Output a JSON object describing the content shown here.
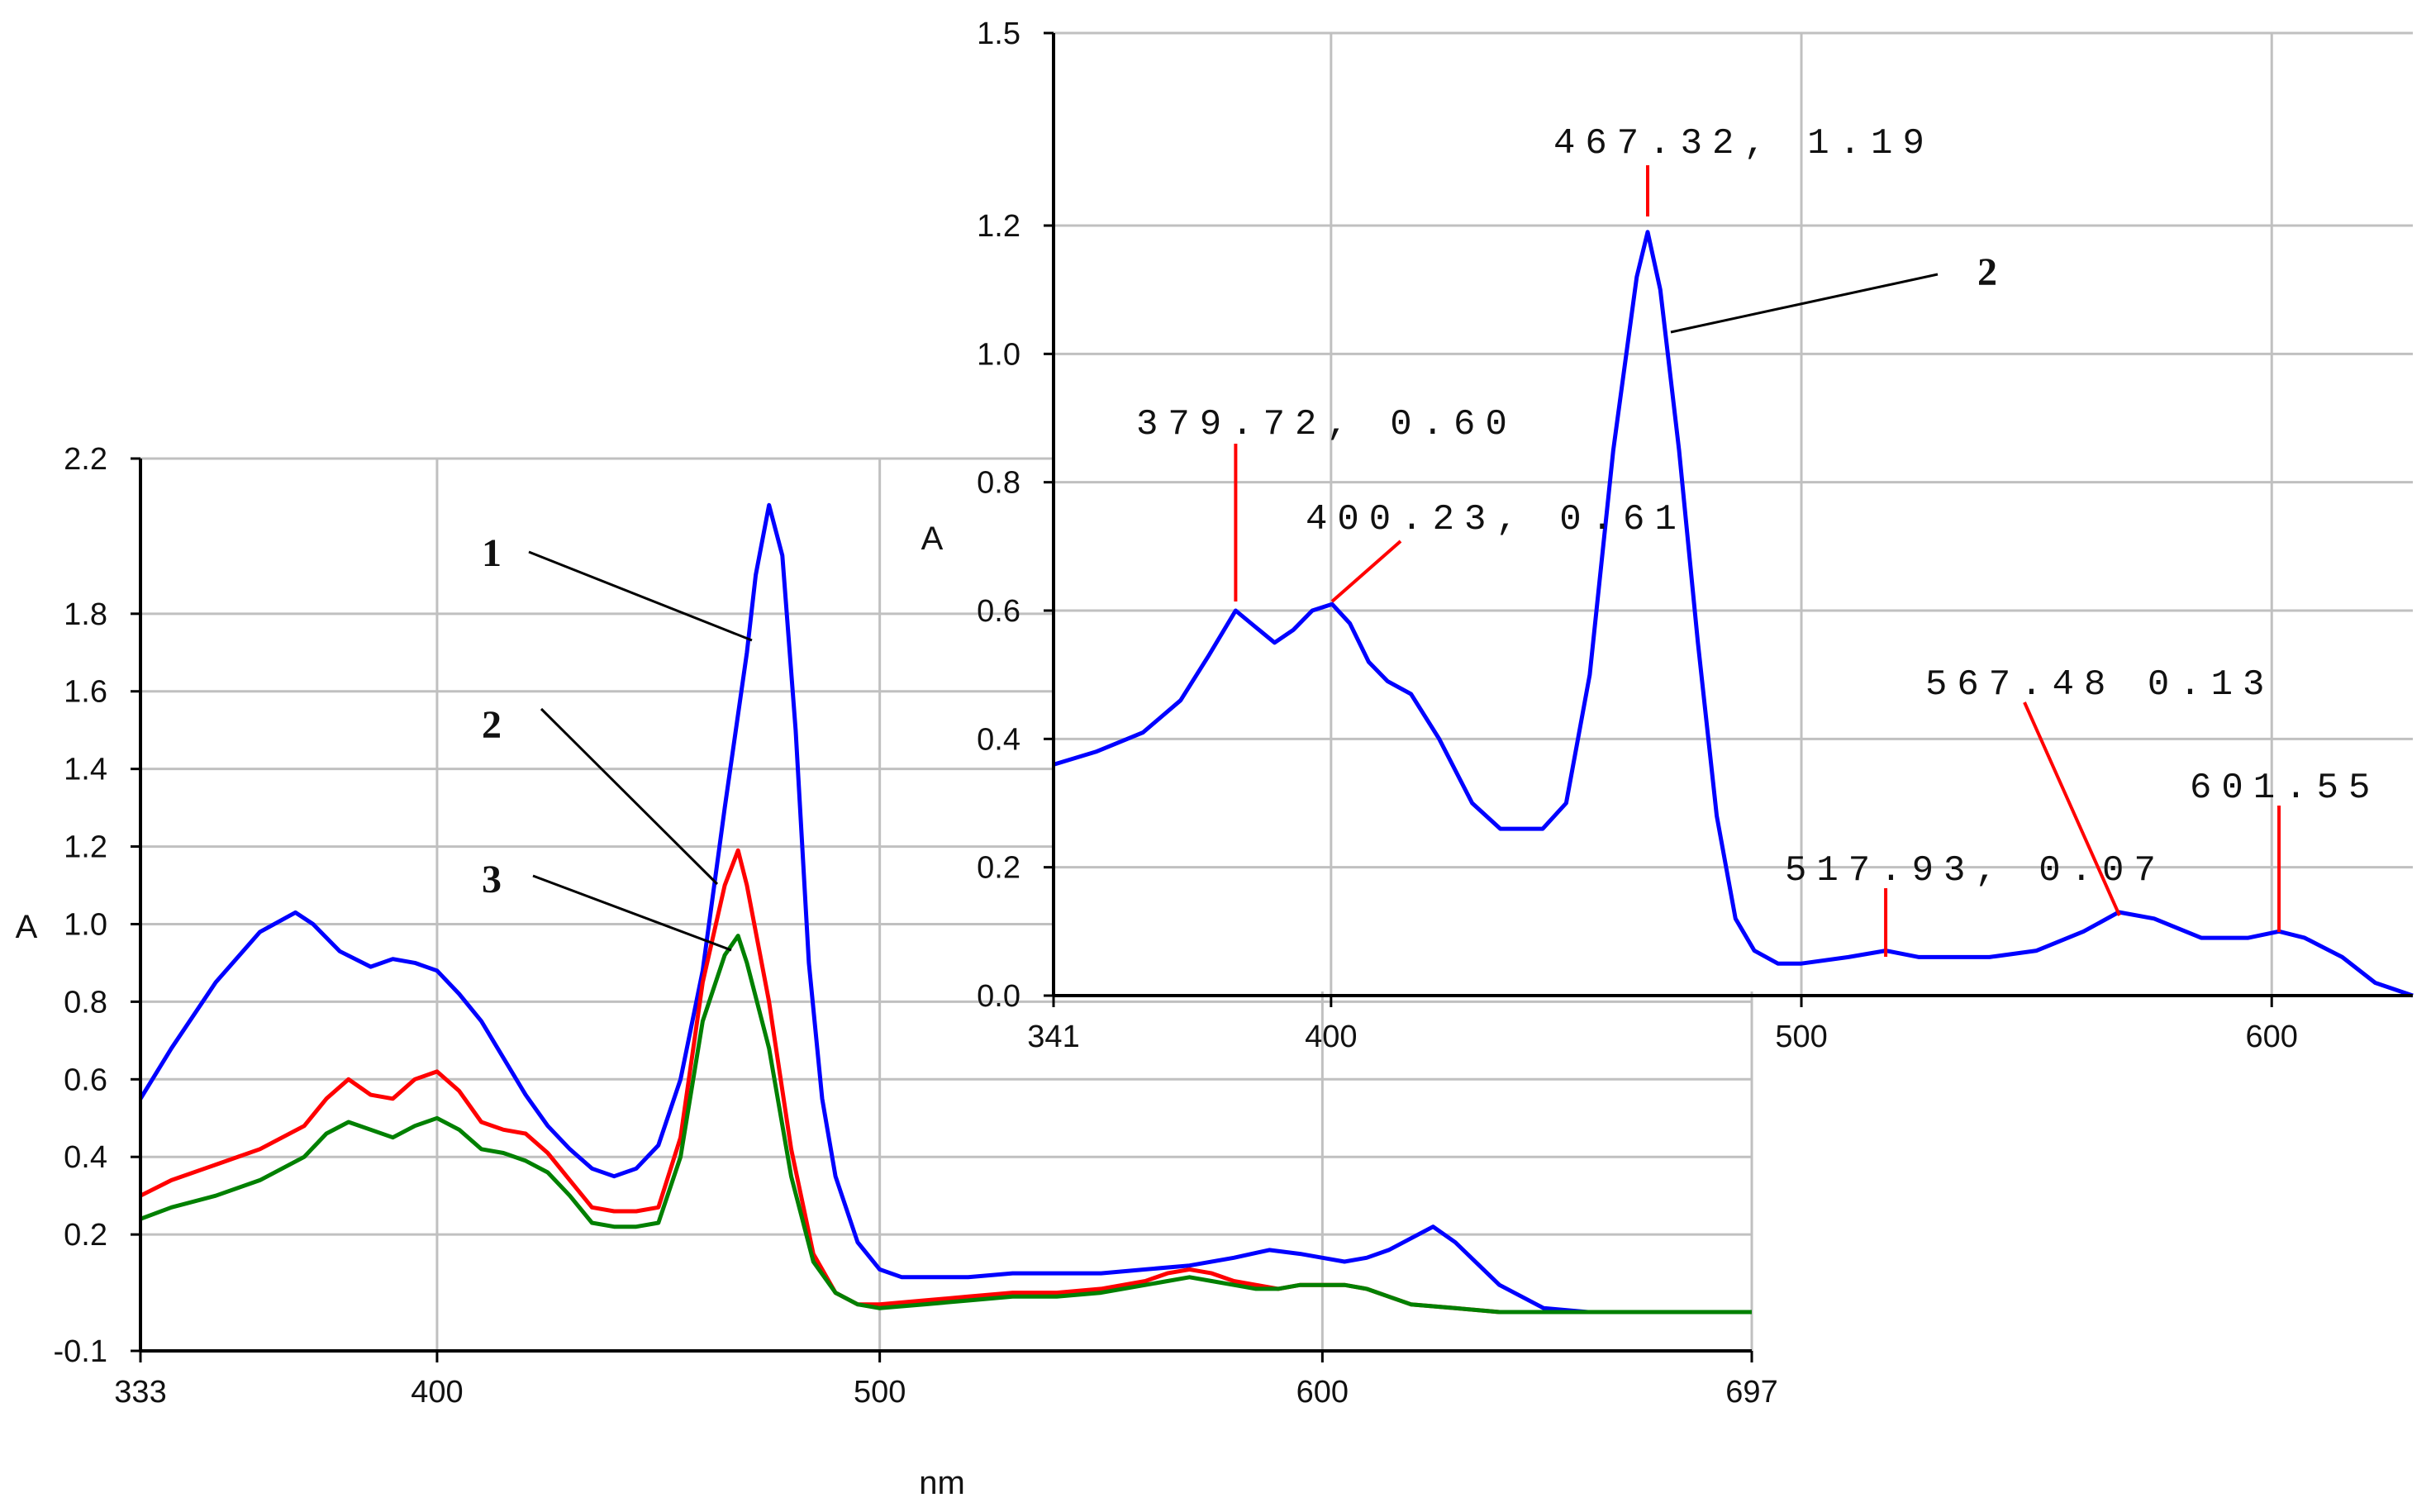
{
  "colors": {
    "series_1": "#0000ff",
    "series_2": "#ff0000",
    "series_3": "#008000",
    "peak_marker": "#ff0000",
    "grid": "#c0c0c0",
    "axis": "#000000"
  },
  "chart_data": [
    {
      "type": "line",
      "xlabel": "nm",
      "ylabel": "A",
      "xlim": [
        333,
        697
      ],
      "ylim": [
        -0.1,
        2.2
      ],
      "x_ticks": [
        "333",
        "400",
        "500",
        "600",
        "697"
      ],
      "y_ticks": [
        "-0.1",
        "0.2",
        "0.4",
        "0.6",
        "0.8",
        "1.0",
        "1.2",
        "1.4",
        "1.6",
        "1.8",
        "2.2"
      ],
      "grid": true,
      "series": [
        {
          "name": "1",
          "x": [
            333,
            340,
            350,
            360,
            368,
            372,
            378,
            385,
            390,
            395,
            400,
            405,
            410,
            420,
            425,
            430,
            435,
            440,
            445,
            450,
            455,
            460,
            465,
            470,
            472,
            475,
            478,
            481,
            484,
            487,
            490,
            495,
            500,
            505,
            510,
            520,
            530,
            540,
            550,
            560,
            570,
            580,
            588,
            595,
            600,
            605,
            610,
            615,
            620,
            625,
            630,
            640,
            650,
            660,
            670,
            680,
            697
          ],
          "y": [
            0.55,
            0.68,
            0.85,
            0.98,
            1.03,
            1.0,
            0.93,
            0.89,
            0.91,
            0.9,
            0.88,
            0.82,
            0.75,
            0.56,
            0.48,
            0.42,
            0.37,
            0.35,
            0.37,
            0.43,
            0.6,
            0.88,
            1.3,
            1.7,
            1.9,
            2.08,
            1.95,
            1.5,
            0.9,
            0.55,
            0.35,
            0.18,
            0.11,
            0.09,
            0.09,
            0.09,
            0.1,
            0.1,
            0.1,
            0.11,
            0.12,
            0.14,
            0.16,
            0.15,
            0.14,
            0.13,
            0.14,
            0.16,
            0.19,
            0.22,
            0.18,
            0.07,
            0.01,
            0.0,
            0.0,
            0.0,
            0.0
          ]
        },
        {
          "name": "2",
          "x": [
            333,
            340,
            350,
            360,
            370,
            375,
            380,
            385,
            390,
            395,
            400,
            405,
            410,
            415,
            420,
            425,
            430,
            435,
            440,
            445,
            450,
            455,
            460,
            465,
            468,
            470,
            475,
            480,
            485,
            490,
            495,
            500,
            510,
            520,
            530,
            540,
            550,
            560,
            565,
            570,
            575,
            580,
            585,
            590,
            595,
            600,
            605,
            610,
            615,
            620,
            630,
            640,
            650,
            697
          ],
          "y": [
            0.3,
            0.34,
            0.38,
            0.42,
            0.48,
            0.55,
            0.6,
            0.56,
            0.55,
            0.6,
            0.62,
            0.57,
            0.49,
            0.47,
            0.46,
            0.41,
            0.34,
            0.27,
            0.26,
            0.26,
            0.27,
            0.45,
            0.85,
            1.1,
            1.19,
            1.1,
            0.8,
            0.42,
            0.15,
            0.05,
            0.02,
            0.02,
            0.03,
            0.04,
            0.05,
            0.05,
            0.06,
            0.08,
            0.1,
            0.11,
            0.1,
            0.08,
            0.07,
            0.06,
            0.07,
            0.07,
            0.07,
            0.06,
            0.04,
            0.02,
            0.01,
            0.0,
            0.0,
            0.0
          ]
        },
        {
          "name": "3",
          "x": [
            333,
            340,
            350,
            360,
            370,
            375,
            380,
            385,
            390,
            395,
            400,
            405,
            410,
            415,
            420,
            425,
            430,
            435,
            440,
            445,
            450,
            455,
            460,
            465,
            468,
            470,
            475,
            480,
            485,
            490,
            495,
            500,
            510,
            520,
            530,
            540,
            550,
            560,
            565,
            570,
            575,
            580,
            585,
            590,
            595,
            600,
            605,
            610,
            615,
            620,
            630,
            640,
            650,
            697
          ],
          "y": [
            0.24,
            0.27,
            0.3,
            0.34,
            0.4,
            0.46,
            0.49,
            0.47,
            0.45,
            0.48,
            0.5,
            0.47,
            0.42,
            0.41,
            0.39,
            0.36,
            0.3,
            0.23,
            0.22,
            0.22,
            0.23,
            0.4,
            0.75,
            0.92,
            0.97,
            0.9,
            0.68,
            0.35,
            0.13,
            0.05,
            0.02,
            0.01,
            0.02,
            0.03,
            0.04,
            0.04,
            0.05,
            0.07,
            0.08,
            0.09,
            0.08,
            0.07,
            0.06,
            0.06,
            0.07,
            0.07,
            0.07,
            0.06,
            0.04,
            0.02,
            0.01,
            0.0,
            0.0,
            0.0
          ]
        }
      ],
      "callouts": [
        "1",
        "2",
        "3"
      ]
    },
    {
      "type": "line",
      "xlabel": "",
      "ylabel": "A",
      "xlim": [
        341,
        630
      ],
      "ylim": [
        0.0,
        1.5
      ],
      "x_ticks": [
        "341",
        "400",
        "500",
        "600"
      ],
      "y_ticks": [
        "0.0",
        "0.2",
        "0.4",
        "0.6",
        "0.8",
        "1.0",
        "1.2",
        "1.5"
      ],
      "grid": true,
      "series": [
        {
          "name": "2",
          "x": [
            341,
            350,
            360,
            368,
            374,
            379.72,
            383,
            388,
            392,
            396,
            400.23,
            404,
            408,
            412,
            417,
            423,
            430,
            436,
            445,
            450,
            455,
            460,
            465,
            467.32,
            470,
            474,
            478,
            482,
            486,
            490,
            495,
            500,
            510,
            517.93,
            525,
            540,
            550,
            560,
            567.48,
            575,
            585,
            595,
            601.55,
            607,
            615,
            622,
            630
          ],
          "y": [
            0.36,
            0.38,
            0.41,
            0.46,
            0.53,
            0.6,
            0.58,
            0.55,
            0.57,
            0.6,
            0.61,
            0.58,
            0.52,
            0.49,
            0.47,
            0.4,
            0.3,
            0.26,
            0.26,
            0.3,
            0.5,
            0.85,
            1.12,
            1.19,
            1.1,
            0.85,
            0.55,
            0.28,
            0.12,
            0.07,
            0.05,
            0.05,
            0.06,
            0.07,
            0.06,
            0.06,
            0.07,
            0.1,
            0.13,
            0.12,
            0.09,
            0.09,
            0.1,
            0.09,
            0.06,
            0.02,
            0.0
          ]
        }
      ],
      "peak_labels": [
        {
          "text": "467.32, 1.19",
          "x": 467.32,
          "y": 1.19
        },
        {
          "text": "379.72, 0.60",
          "x": 379.72,
          "y": 0.6
        },
        {
          "text": "400.23, 0.61",
          "x": 400.23,
          "y": 0.61
        },
        {
          "text": "567.48  0.13",
          "x": 567.48,
          "y": 0.13
        },
        {
          "text": "601.55",
          "x": 601.55,
          "y": 0.1
        },
        {
          "text": "517.93, 0.07",
          "x": 517.93,
          "y": 0.07
        }
      ],
      "callouts": [
        "2"
      ]
    }
  ]
}
